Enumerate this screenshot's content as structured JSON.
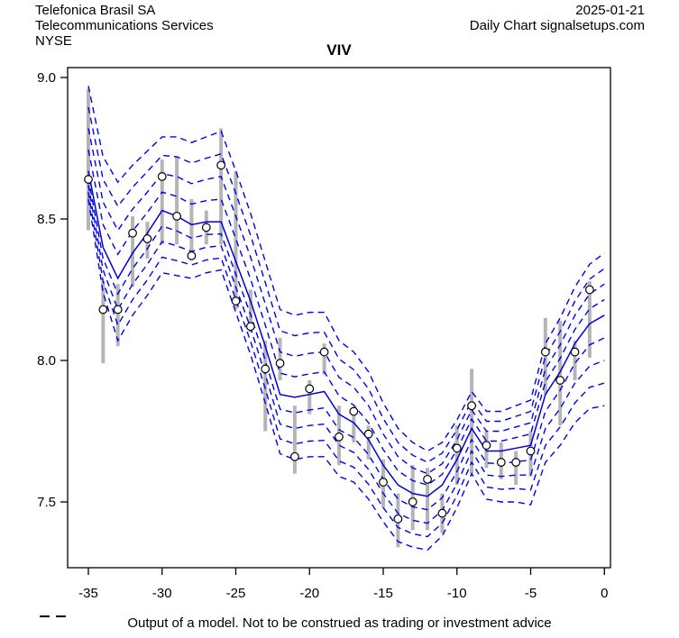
{
  "header": {
    "company": "Telefonica Brasil SA",
    "sector": "Telecommunications Services",
    "exchange": "NYSE",
    "date": "2025-01-21",
    "chart_label": "Daily Chart signalsetups.com",
    "symbol": "VIV"
  },
  "footer": {
    "disclaimer": "Output of a model. Not to be construed as trading or investment advice"
  },
  "colors": {
    "axis": "#000000",
    "text": "#000000",
    "model_line": "#0000dd",
    "band_line": "#0000ee",
    "price_bar": "#b5b5b5",
    "circle_stroke": "#000000",
    "circle_fill": "#ffffff"
  },
  "chart_data": {
    "type": "line",
    "subtype": "daily-price-with-model-quantile-bands",
    "title": "VIV",
    "xlabel": "",
    "ylabel": "",
    "grid": false,
    "legend": "none",
    "x_axis": {
      "ticks": [
        -35,
        -30,
        -25,
        -20,
        -15,
        -10,
        -5,
        0
      ],
      "labels": [
        "-35",
        "-30",
        "-25",
        "-20",
        "-15",
        "-10",
        "-5",
        "0"
      ],
      "range": [
        -36.4,
        0.4
      ]
    },
    "y_axis": {
      "ticks": [
        9.0,
        8.5,
        8.0,
        7.5
      ],
      "labels": [
        "9.0",
        "8.5",
        "8.0",
        "7.5"
      ],
      "range": [
        7.27,
        9.03
      ]
    },
    "days": [
      -35,
      -34,
      -33,
      -32,
      -31,
      -30,
      -29,
      -28,
      -27,
      -26,
      -25,
      -24,
      -23,
      -22,
      -21,
      -20,
      -19,
      -18,
      -17,
      -16,
      -15,
      -14,
      -13,
      -12,
      -11,
      -10,
      -9,
      -8,
      -7,
      -6,
      -5,
      -4,
      -3,
      -2,
      -1
    ],
    "price": {
      "close": [
        8.64,
        8.18,
        8.18,
        8.45,
        8.43,
        8.65,
        8.51,
        8.37,
        8.47,
        8.69,
        8.21,
        8.12,
        7.97,
        7.99,
        7.66,
        7.9,
        8.03,
        7.73,
        7.82,
        7.74,
        7.57,
        7.44,
        7.5,
        7.58,
        7.46,
        7.69,
        7.84,
        7.7,
        7.64,
        7.64,
        7.68,
        8.03,
        7.93,
        8.03,
        8.25
      ],
      "high": [
        8.96,
        8.28,
        8.27,
        8.51,
        8.49,
        8.71,
        8.72,
        8.57,
        8.53,
        8.82,
        8.67,
        8.25,
        8.07,
        8.08,
        7.84,
        7.93,
        8.06,
        7.84,
        7.83,
        7.77,
        7.65,
        7.53,
        7.63,
        7.62,
        7.53,
        7.77,
        7.97,
        7.75,
        7.71,
        7.68,
        7.75,
        8.15,
        8.14,
        8.07,
        8.28
      ],
      "low": [
        8.46,
        7.99,
        8.05,
        8.26,
        8.36,
        8.41,
        8.41,
        8.37,
        8.41,
        8.41,
        8.18,
        8.1,
        7.75,
        7.93,
        7.6,
        7.81,
        7.95,
        7.63,
        7.71,
        7.65,
        7.48,
        7.34,
        7.4,
        7.4,
        7.39,
        7.56,
        7.6,
        7.62,
        7.58,
        7.56,
        7.59,
        7.88,
        7.77,
        7.93,
        8.01
      ]
    },
    "model_days": [
      -35,
      -34,
      -33,
      -32,
      -31,
      -30,
      -29,
      -28,
      -27,
      -26,
      -25,
      -24,
      -23,
      -22,
      -21,
      -20,
      -19,
      -18,
      -17,
      -16,
      -15,
      -14,
      -13,
      -12,
      -11,
      -10,
      -9,
      -8,
      -7,
      -6,
      -5,
      -4,
      -3,
      -2,
      -1,
      0
    ],
    "model": [
      8.67,
      8.4,
      8.29,
      8.38,
      8.45,
      8.53,
      8.51,
      8.48,
      8.49,
      8.49,
      8.35,
      8.21,
      8.05,
      7.88,
      7.87,
      7.88,
      7.89,
      7.81,
      7.78,
      7.72,
      7.63,
      7.56,
      7.53,
      7.52,
      7.56,
      7.65,
      7.76,
      7.68,
      7.68,
      7.69,
      7.7,
      7.88,
      7.96,
      8.06,
      8.13,
      8.16
    ],
    "band_multipliers": [
      0.25,
      0.5,
      0.75,
      1.0
    ],
    "band_width_upper": [
      0.3,
      0.32,
      0.34,
      0.31,
      0.29,
      0.26,
      0.28,
      0.29,
      0.3,
      0.32,
      0.32,
      0.31,
      0.3,
      0.3,
      0.29,
      0.29,
      0.28,
      0.26,
      0.25,
      0.24,
      0.22,
      0.2,
      0.18,
      0.16,
      0.15,
      0.14,
      0.13,
      0.14,
      0.14,
      0.15,
      0.16,
      0.18,
      0.19,
      0.2,
      0.21,
      0.22
    ],
    "band_width_lower": [
      0.1,
      0.16,
      0.22,
      0.22,
      0.22,
      0.22,
      0.21,
      0.19,
      0.18,
      0.17,
      0.18,
      0.19,
      0.2,
      0.21,
      0.22,
      0.22,
      0.23,
      0.22,
      0.21,
      0.21,
      0.2,
      0.2,
      0.19,
      0.19,
      0.18,
      0.17,
      0.16,
      0.17,
      0.18,
      0.19,
      0.21,
      0.24,
      0.26,
      0.28,
      0.3,
      0.32
    ]
  }
}
